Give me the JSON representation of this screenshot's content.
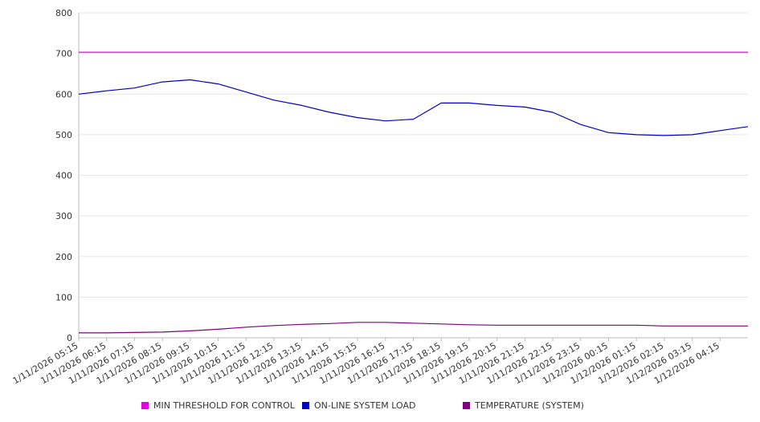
{
  "chart_data": {
    "type": "line",
    "title": "",
    "xlabel": "",
    "ylabel": "",
    "ylim": [
      0,
      800
    ],
    "yticks": [
      "0",
      "100",
      "200",
      "300",
      "400",
      "500",
      "600",
      "700",
      "800"
    ],
    "grid": true,
    "legend_position": "bottom",
    "x_tick_labels": [
      "1/11/2026 05:15",
      "1/11/2026 06:15",
      "1/11/2026 07:15",
      "1/11/2026 08:15",
      "1/11/2026 09:15",
      "1/11/2026 10:15",
      "1/11/2026 11:15",
      "1/11/2026 12:15",
      "1/11/2026 13:15",
      "1/11/2026 14:15",
      "1/11/2026 15:15",
      "1/11/2026 16:15",
      "1/11/2026 17:15",
      "1/11/2026 18:15",
      "1/11/2026 19:15",
      "1/11/2026 20:15",
      "1/11/2026 21:15",
      "1/11/2026 22:15",
      "1/11/2026 23:15",
      "1/12/2026 00:15",
      "1/12/2026 01:15",
      "1/12/2026 02:15",
      "1/12/2026 03:15",
      "1/12/2026 04:15"
    ],
    "series": [
      {
        "name": "MIN THRESHOLD FOR CONTROL",
        "color": "#e600e6",
        "values": [
          703,
          703,
          703,
          703,
          703,
          703,
          703,
          703,
          703,
          703,
          703,
          703,
          703,
          703,
          703,
          703,
          703,
          703,
          703,
          703,
          703,
          703,
          703,
          703,
          703
        ]
      },
      {
        "name": "ON-LINE SYSTEM LOAD",
        "color": "#0000cc",
        "values": [
          600,
          608,
          615,
          630,
          635,
          625,
          605,
          585,
          572,
          555,
          542,
          534,
          538,
          578,
          578,
          572,
          568,
          555,
          525,
          505,
          500,
          498,
          500,
          510,
          520
        ]
      },
      {
        "name": "TEMPERATURE (SYSTEM)",
        "color": "#800080",
        "values": [
          12,
          12,
          13,
          14,
          17,
          21,
          26,
          30,
          33,
          35,
          38,
          38,
          36,
          34,
          32,
          31,
          31,
          31,
          31,
          31,
          31,
          29,
          29,
          29,
          29
        ]
      }
    ]
  }
}
